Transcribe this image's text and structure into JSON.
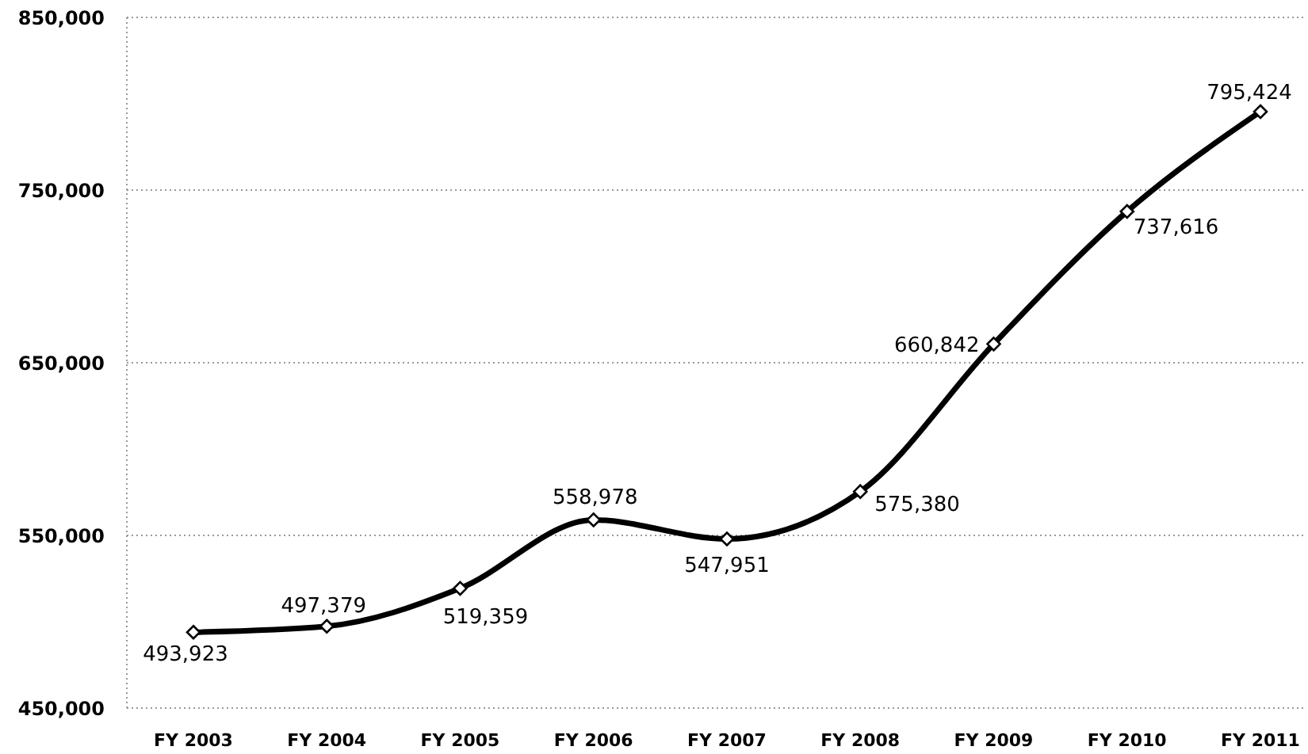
{
  "chart_data": {
    "type": "line",
    "categories": [
      "FY 2003",
      "FY 2004",
      "FY 2005",
      "FY 2006",
      "FY 2007",
      "FY 2008",
      "FY 2009",
      "FY 2010",
      "FY 2011"
    ],
    "values": [
      493923,
      497379,
      519359,
      558978,
      547951,
      575380,
      660842,
      737616,
      795424
    ],
    "color": "#000000",
    "value_labels": [
      "493,923",
      "497,379",
      "519,359",
      "558,978",
      "547,951",
      "575,380",
      "660,842",
      "737,616",
      "795,424"
    ],
    "ylim": [
      450000,
      850000
    ],
    "yticks": [
      {
        "value": 450000,
        "label": "450,000"
      },
      {
        "value": 550000,
        "label": "550,000"
      },
      {
        "value": 650000,
        "label": "650,000"
      },
      {
        "value": 750000,
        "label": "750,000"
      },
      {
        "value": 850000,
        "label": "850,000"
      }
    ],
    "grid": "y",
    "marker": "diamond",
    "line_style": "solid"
  }
}
